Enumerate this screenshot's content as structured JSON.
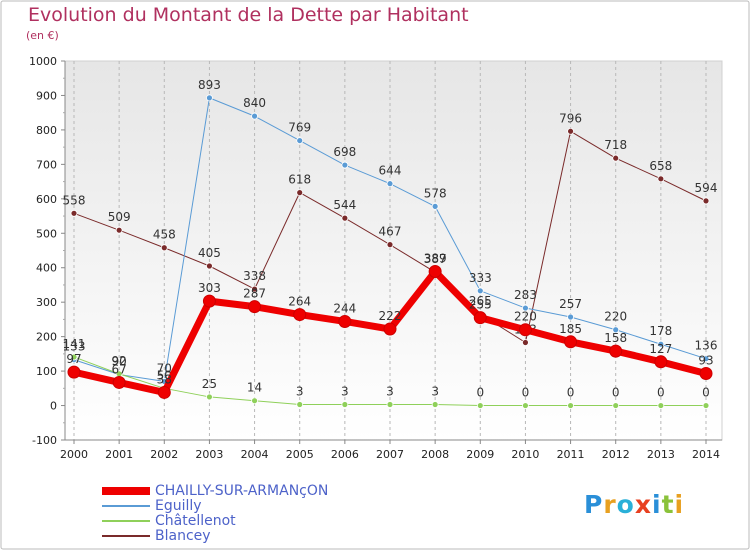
{
  "chart_data": {
    "type": "line",
    "title": "Evolution du Montant de la Dette par Habitant",
    "subtitle": "(en €)",
    "xlabel": "",
    "ylabel": "",
    "ylim": [
      -100,
      1000
    ],
    "yticks": [
      -100,
      0,
      100,
      200,
      300,
      400,
      500,
      600,
      700,
      800,
      900,
      1000
    ],
    "x": [
      "2000",
      "2001",
      "2002",
      "2003",
      "2004",
      "2005",
      "2006",
      "2007",
      "2008",
      "2009",
      "2010",
      "2011",
      "2012",
      "2013",
      "2014"
    ],
    "grid": "vertical dashed",
    "legend": "bottom-left",
    "series": [
      {
        "name": "Blancey",
        "color": "#7a2a2a",
        "width": 1,
        "values": [
          558,
          509,
          458,
          405,
          338,
          618,
          544,
          467,
          387,
          265,
          183,
          796,
          718,
          658,
          594
        ],
        "labels": [
          "558",
          "509",
          "458",
          "405",
          "338",
          "618",
          "544",
          "467",
          "387",
          "265",
          "183",
          "796",
          "718",
          "658",
          "594"
        ]
      },
      {
        "name": "Eguilly",
        "color": "#5a9bd5",
        "width": 1,
        "values": [
          133,
          90,
          70,
          893,
          840,
          769,
          698,
          644,
          578,
          333,
          283,
          257,
          220,
          178,
          136
        ],
        "labels": [
          "133",
          "90",
          "70",
          "893",
          "840",
          "769",
          "698",
          "644",
          "578",
          "333",
          "283",
          "257",
          "220",
          "178",
          "136"
        ]
      },
      {
        "name": "Châtellenot",
        "color": "#8fd05a",
        "width": 1,
        "values": [
          141,
          92,
          50,
          25,
          14,
          3,
          3,
          3,
          3,
          0,
          0,
          0,
          0,
          0,
          0
        ],
        "labels": [
          "141",
          "92",
          "50",
          "25",
          "14",
          "3",
          "3",
          "3",
          "3",
          "0",
          "0",
          "0",
          "0",
          "0",
          "0"
        ]
      },
      {
        "name": "CHAILLY-SUR-ARMANçON",
        "color": "#ee0000",
        "width": 7,
        "values": [
          97,
          67,
          38,
          303,
          287,
          264,
          244,
          222,
          389,
          255,
          220,
          185,
          158,
          127,
          93
        ],
        "labels": [
          "97",
          "67",
          "38",
          "303",
          "287",
          "264",
          "244",
          "222",
          "389",
          "255",
          "220",
          "185",
          "158",
          "127",
          "93"
        ]
      }
    ]
  },
  "legend_items": [
    {
      "name": "CHAILLY-SUR-ARMANçON",
      "color": "#ee0000",
      "thickness": 8
    },
    {
      "name": "Eguilly",
      "color": "#5a9bd5",
      "thickness": 2
    },
    {
      "name": "Châtellenot",
      "color": "#8fd05a",
      "thickness": 2
    },
    {
      "name": "Blancey",
      "color": "#7a2a2a",
      "thickness": 2
    }
  ],
  "logo": {
    "text": "Proxiti",
    "colors": [
      "#2a8fd8",
      "#e8a020",
      "#2ab0d8",
      "#e84020",
      "#2a8fd8",
      "#8ac23a",
      "#e8a020"
    ]
  }
}
